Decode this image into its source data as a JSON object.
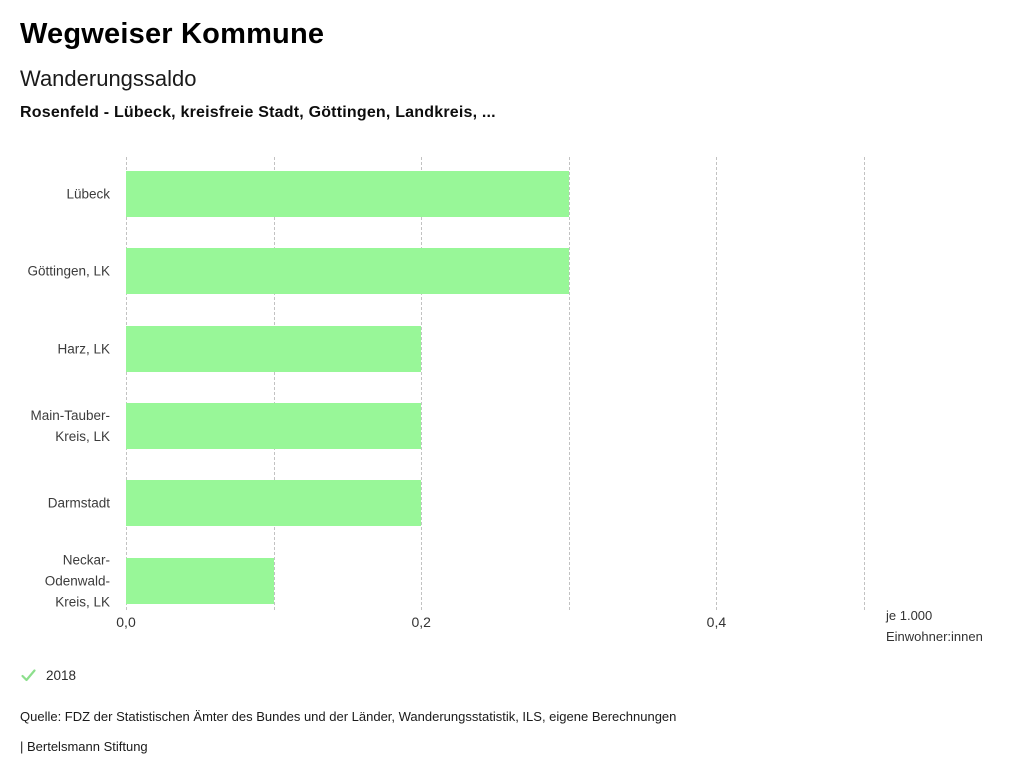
{
  "header": {
    "title": "Wegweiser Kommune",
    "subtitle": "Wanderungssaldo",
    "selection": "Rosenfeld - Lübeck, kreisfreie Stadt, Göttingen, Landkreis, ..."
  },
  "chart_data": {
    "type": "bar",
    "orientation": "horizontal",
    "title": "Wanderungssaldo",
    "categories": [
      "Lübeck",
      "Göttingen, LK",
      "Harz, LK",
      "Main-Tauber-\nKreis, LK",
      "Darmstadt",
      "Neckar-\nOdenwald-\nKreis, LK"
    ],
    "series": [
      {
        "name": "2018",
        "values": [
          0.3,
          0.3,
          0.2,
          0.2,
          0.2,
          0.1
        ]
      }
    ],
    "xlim": [
      0,
      0.5
    ],
    "gridlines": [
      0,
      0.1,
      0.2,
      0.3,
      0.4,
      0.5
    ],
    "ticks": [
      {
        "value": 0.0,
        "label": "0,0"
      },
      {
        "value": 0.2,
        "label": "0,2"
      },
      {
        "value": 0.4,
        "label": "0,4"
      }
    ],
    "unit_label": "je 1.000\nEinwohner:innen",
    "bar_color": "#98f798",
    "grid": true,
    "legend_position": "bottom-left"
  },
  "legend": {
    "year_label": "2018",
    "check_icon_color": "#8ddf8d"
  },
  "footer": {
    "source": "Quelle: FDZ der Statistischen Ämter des Bundes und der Länder, Wanderungsstatistik, ILS, eigene Berechnungen",
    "branding": "| Bertelsmann Stiftung"
  }
}
